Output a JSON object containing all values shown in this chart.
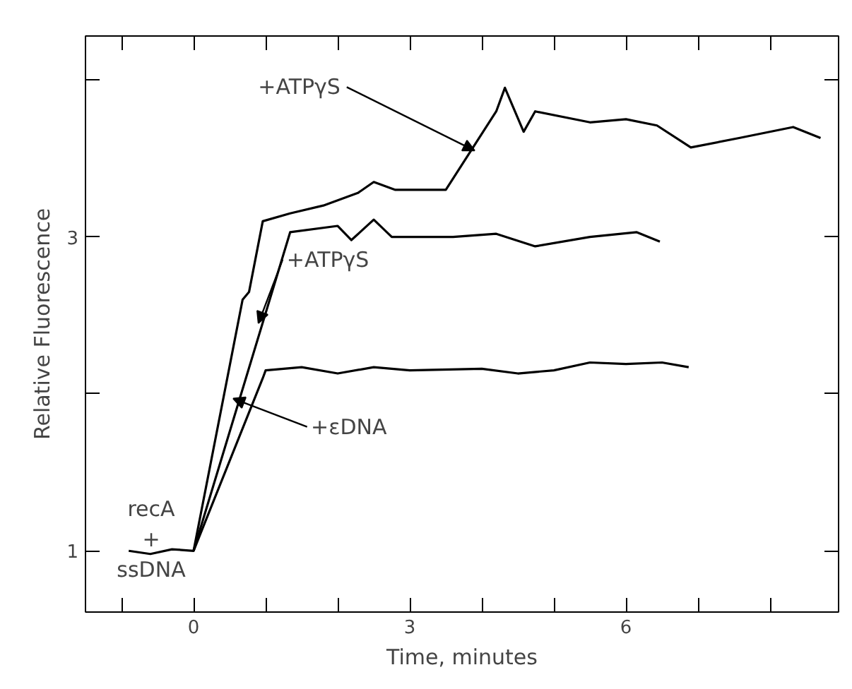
{
  "chart_data": {
    "type": "line",
    "xlabel": "Time, minutes",
    "ylabel": "Relative Fluorescence",
    "xlim": [
      -1.5,
      8.95
    ],
    "ylim": [
      0.61,
      4.28
    ],
    "xticks": [
      {
        "value": -1,
        "label": null
      },
      0,
      {
        "value": 1,
        "label": null
      },
      {
        "value": 2,
        "label": null
      },
      3,
      {
        "value": 4,
        "label": null
      },
      {
        "value": 5,
        "label": null
      },
      6,
      {
        "value": 7,
        "label": null
      },
      {
        "value": 8,
        "label": null
      }
    ],
    "yticks": [
      1,
      {
        "value": 2,
        "label": null
      },
      3,
      {
        "value": 4,
        "label": null
      }
    ],
    "grid": false,
    "marker": "none",
    "line_style": "solid",
    "series": [
      {
        "color": "#000000",
        "x": [
          -0.9,
          -0.6,
          -0.3,
          0,
          0.68,
          0.77,
          0.96,
          1.34,
          1.8,
          2.28,
          2.5,
          2.8,
          3.5,
          4.2,
          4.32,
          4.58,
          4.74,
          5.5,
          6.0,
          6.43,
          6.9,
          7.57,
          8.32,
          8.7
        ],
        "values": [
          1.0,
          0.98,
          1.01,
          1.0,
          2.6,
          2.65,
          3.1,
          3.15,
          3.2,
          3.28,
          3.35,
          3.3,
          3.3,
          3.8,
          3.95,
          3.67,
          3.8,
          3.73,
          3.75,
          3.71,
          3.57,
          3.63,
          3.7,
          3.63
        ]
      },
      {
        "color": "#000000",
        "x": [
          0,
          1.34,
          2.0,
          2.19,
          2.5,
          2.75,
          3.6,
          4.2,
          4.74,
          5.5,
          6.15,
          6.47
        ],
        "values": [
          1.0,
          3.03,
          3.07,
          2.98,
          3.11,
          3.0,
          3.0,
          3.02,
          2.94,
          3.0,
          3.03,
          2.97
        ]
      },
      {
        "color": "#000000",
        "x": [
          0,
          0.96,
          1.0,
          1.5,
          2.0,
          2.5,
          3.0,
          4.0,
          4.5,
          5.0,
          5.5,
          6.0,
          6.5,
          6.87
        ],
        "values": [
          1.0,
          2.1,
          2.15,
          2.17,
          2.13,
          2.17,
          2.15,
          2.16,
          2.13,
          2.15,
          2.2,
          2.19,
          2.2,
          2.17
        ]
      }
    ],
    "annotations": [
      {
        "text": "+ATPγS",
        "x": 3.9,
        "y": 3.55
      },
      {
        "text": "+ATPγS",
        "x": 0.9,
        "y": 2.45
      },
      {
        "text": "+εDNA",
        "x": 0.55,
        "y": 1.97
      },
      {
        "text": "recA\n+\nssDNA",
        "x": 0,
        "y": 1
      }
    ]
  }
}
